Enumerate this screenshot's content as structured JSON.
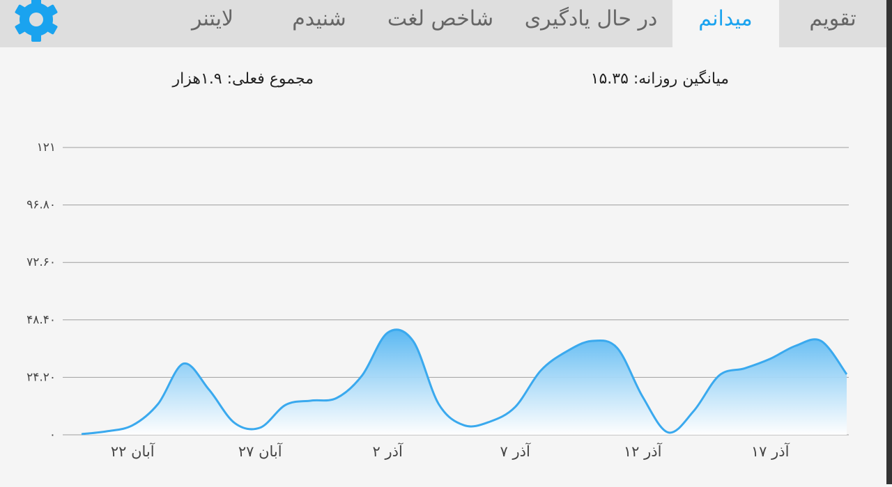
{
  "tabs": [
    "تقویم",
    "میدانم",
    "در حال یادگیری",
    "شاخص لغت",
    "شنیدم",
    "لایتنر"
  ],
  "stats": {
    "daily_average": "میانگین روزانه: ۱۵.۳۵",
    "current_total": "مجموع فعلی: ۱.۹هزار"
  },
  "chart_data": {
    "type": "area",
    "color": "#3aa9ee",
    "grid": true,
    "categories": [
      null,
      null,
      "۲۲ آبان",
      null,
      null,
      null,
      null,
      "۲۷ آبان",
      null,
      null,
      null,
      null,
      "۲ آذر",
      null,
      null,
      null,
      null,
      "۷ آذر",
      null,
      null,
      null,
      null,
      "۱۲ آذر",
      null,
      null,
      null,
      null,
      "۱۷ آذر",
      null,
      null,
      null
    ],
    "values": [
      0.3,
      1.5,
      4,
      13,
      30,
      19,
      5,
      3,
      12.6,
      14.4,
      15.5,
      25,
      43,
      39.5,
      13,
      4,
      5.5,
      11.7,
      27,
      35,
      39.5,
      36.6,
      16,
      1,
      10,
      25,
      28,
      32,
      37.5,
      39.5,
      25.5
    ],
    "ylim": [
      0,
      121
    ],
    "yticks": [
      {
        "value": 0,
        "label": "۰"
      },
      {
        "value": 24.2,
        "label": "۲۴.۲۰"
      },
      {
        "value": 48.4,
        "label": "۴۸.۴۰"
      },
      {
        "value": 72.6,
        "label": "۷۲.۶۰"
      },
      {
        "value": 96.8,
        "label": "۹۶.۸۰"
      },
      {
        "value": 121,
        "label": "۱۲۱"
      }
    ]
  }
}
